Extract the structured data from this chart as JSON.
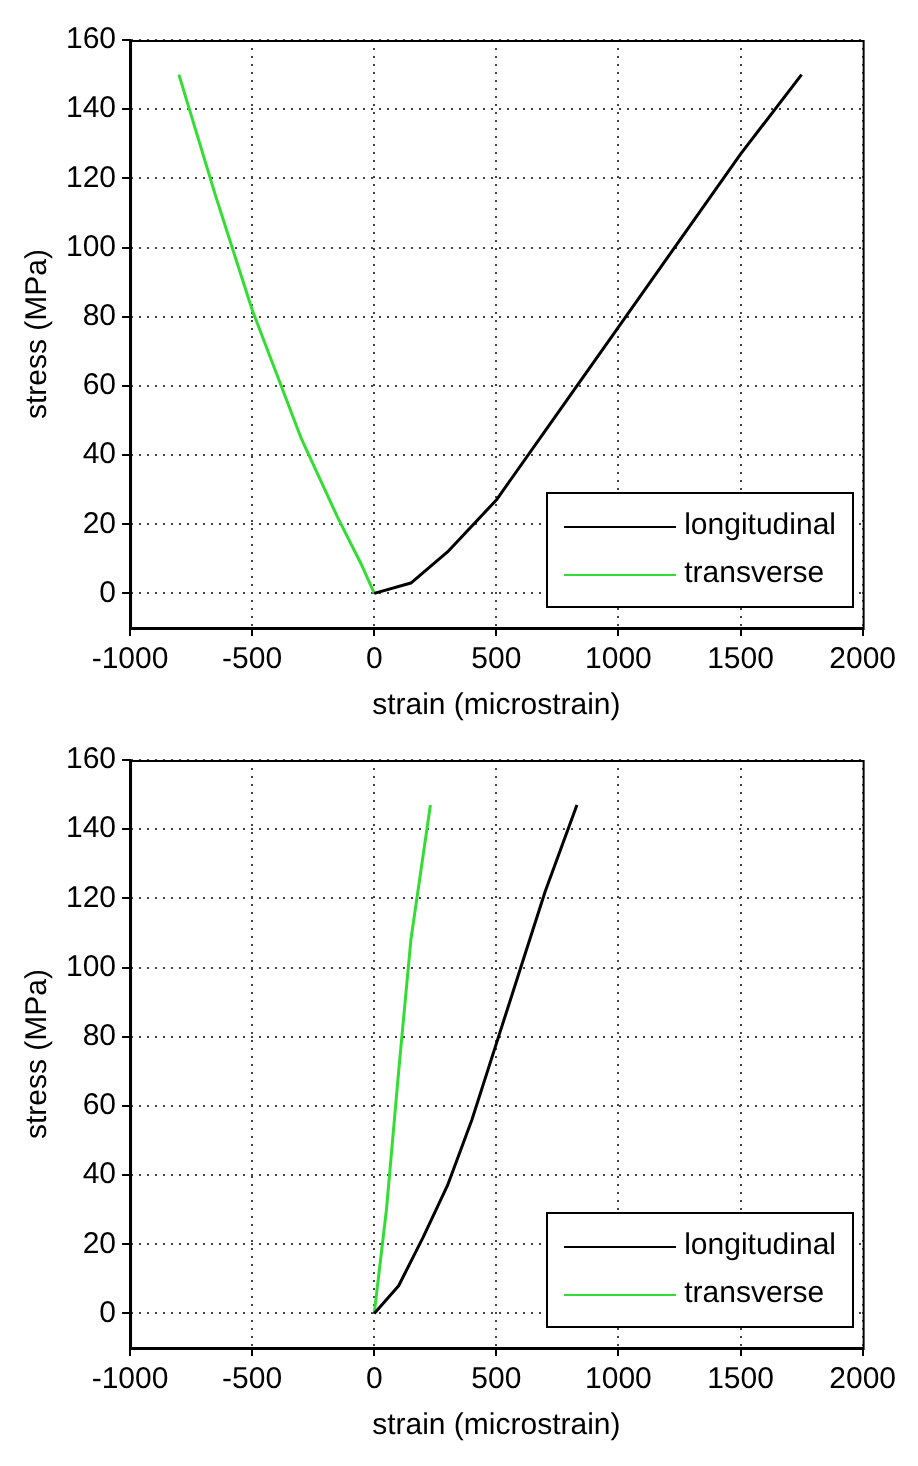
{
  "chart_data": [
    {
      "type": "line",
      "xlabel": "strain (microstrain)",
      "ylabel": "stress (MPa)",
      "xlim": [
        -1000,
        2000
      ],
      "xticks": [
        -1000,
        -500,
        0,
        500,
        1000,
        1500,
        2000
      ],
      "ylim": [
        -10,
        160
      ],
      "yticks": [
        0,
        20,
        40,
        60,
        80,
        100,
        120,
        140,
        160
      ],
      "grid": true,
      "legend": "bottom right",
      "marker": "none",
      "line_style": "solid",
      "series": [
        {
          "name": "longitudinal",
          "color": "#000000",
          "x": [
            0,
            150,
            300,
            500,
            700,
            1000,
            1250,
            1500,
            1750
          ],
          "values": [
            0,
            3,
            12,
            27,
            47,
            77,
            102,
            127,
            150
          ]
        },
        {
          "name": "transverse",
          "color": "#33dd33",
          "x": [
            0,
            -50,
            -150,
            -300,
            -500,
            -650,
            -800
          ],
          "values": [
            0,
            8,
            22,
            45,
            82,
            115,
            150
          ]
        }
      ]
    },
    {
      "type": "line",
      "xlabel": "strain (microstrain)",
      "ylabel": "stress (MPa)",
      "xlim": [
        -1000,
        2000
      ],
      "xticks": [
        -1000,
        -500,
        0,
        500,
        1000,
        1500,
        2000
      ],
      "ylim": [
        -10,
        160
      ],
      "yticks": [
        0,
        20,
        40,
        60,
        80,
        100,
        120,
        140,
        160
      ],
      "grid": true,
      "legend": "bottom right",
      "marker": "none",
      "line_style": "solid",
      "series": [
        {
          "name": "longitudinal",
          "color": "#000000",
          "x": [
            0,
            100,
            200,
            300,
            400,
            500,
            600,
            700,
            830
          ],
          "values": [
            0,
            8,
            22,
            37,
            56,
            78,
            100,
            122,
            147
          ]
        },
        {
          "name": "transverse",
          "color": "#33dd33",
          "x": [
            0,
            50,
            100,
            150,
            230
          ],
          "values": [
            0,
            30,
            70,
            108,
            147
          ]
        }
      ]
    }
  ]
}
